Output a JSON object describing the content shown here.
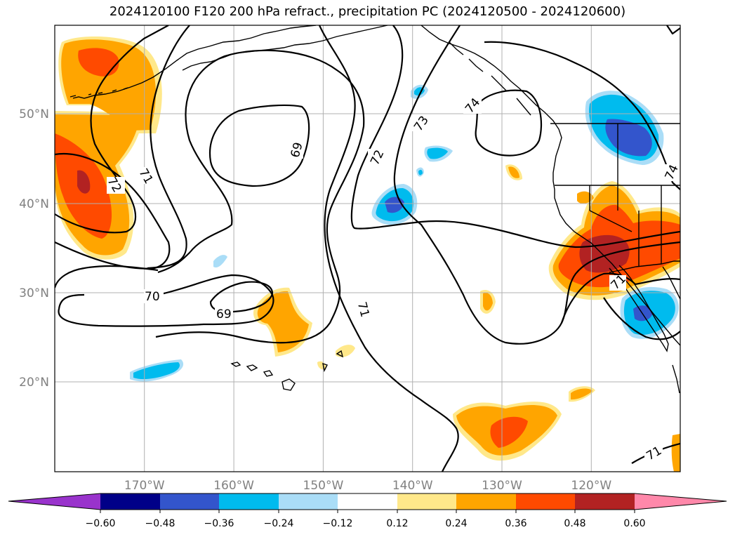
{
  "title": "2024120100 F120 200 hPa refract., precipitation PC (2024120500 - 2024120600)",
  "colors": {
    "neg_extend": "#9933cc",
    "n060": "#000088",
    "n048": "#3355cc",
    "n036": "#00bbee",
    "n024": "#aaddf7",
    "n012": "#ffffff",
    "p012": "#ffe88a",
    "p024": "#ffa500",
    "p036": "#ff4a00",
    "p048": "#b22222",
    "pos_extend": "#ff88aa"
  },
  "lon_labels": [
    "170°W",
    "160°W",
    "150°W",
    "140°W",
    "130°W",
    "120°W"
  ],
  "lat_labels": [
    "50°N",
    "40°N",
    "30°N",
    "20°N"
  ],
  "contour_labels": [
    "69",
    "69",
    "70",
    "71",
    "71",
    "71",
    "71",
    "72",
    "72",
    "73",
    "74",
    "74"
  ],
  "colorbar_ticks": [
    "−0.60",
    "−0.48",
    "−0.36",
    "−0.24",
    "−0.12",
    "0.12",
    "0.24",
    "0.36",
    "0.48",
    "0.60"
  ]
}
